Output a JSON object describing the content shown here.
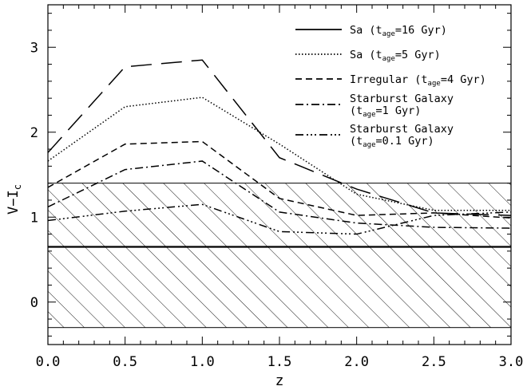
{
  "chart_data": {
    "type": "line",
    "xlabel": "z",
    "ylabel": {
      "main": "V−I",
      "sub": "c"
    },
    "xlim": [
      0.0,
      3.0
    ],
    "ylim": [
      -0.5,
      3.5
    ],
    "xticks": [
      "0.0",
      "0.5",
      "1.0",
      "1.5",
      "2.0",
      "2.5",
      "3.0"
    ],
    "yticks": [
      "0",
      "1",
      "2",
      "3"
    ],
    "grid": false,
    "legend_position": "top-right",
    "series": [
      {
        "name": "Sa (t_age=16 Gyr)",
        "label_pre": "Sa (t",
        "label_sub": "age",
        "label_post": "=16 Gyr)",
        "dash": "solid-legend-longdash-plot",
        "x": [
          0.0,
          0.5,
          1.0,
          1.5,
          2.0,
          2.5,
          3.0
        ],
        "y": [
          1.76,
          2.77,
          2.85,
          1.7,
          1.33,
          1.05,
          1.02
        ]
      },
      {
        "name": "Sa (t_age=5 Gyr)",
        "label_pre": "Sa (t",
        "label_sub": "age",
        "label_post": "=5 Gyr)",
        "dash": "dotted",
        "x": [
          0.0,
          0.5,
          1.0,
          1.5,
          2.0,
          2.5,
          3.0
        ],
        "y": [
          1.66,
          2.3,
          2.41,
          1.86,
          1.27,
          1.08,
          1.08
        ]
      },
      {
        "name": "Irregular (t_age=4 Gyr)",
        "label_pre": "Irregular (t",
        "label_sub": "age",
        "label_post": "=4 Gyr)",
        "dash": "dashed",
        "x": [
          0.0,
          0.5,
          1.0,
          1.5,
          2.0,
          2.5,
          3.0
        ],
        "y": [
          1.35,
          1.86,
          1.89,
          1.22,
          1.02,
          1.05,
          0.99
        ]
      },
      {
        "name": "Starburst Galaxy (t_age=1 Gyr)",
        "label_line1": "Starburst Galaxy",
        "label_pre": "(t",
        "label_sub": "age",
        "label_post": "=1 Gyr)",
        "dash": "dashdot",
        "x": [
          0.0,
          0.5,
          1.0,
          1.5,
          2.0,
          2.5,
          3.0
        ],
        "y": [
          1.12,
          1.56,
          1.66,
          1.06,
          0.93,
          0.88,
          0.87
        ]
      },
      {
        "name": "Starburst Galaxy (t_age=0.1 Gyr)",
        "label_line1": "Starburst Galaxy",
        "label_pre": "(t",
        "label_sub": "age",
        "label_post": "=0.1 Gyr)",
        "dash": "dashdotdotdot",
        "x": [
          0.0,
          0.5,
          1.0,
          1.5,
          2.0,
          2.5,
          3.0
        ],
        "y": [
          0.96,
          1.07,
          1.15,
          0.83,
          0.8,
          1.02,
          1.06
        ]
      }
    ],
    "bands": {
      "hatched_range": [
        -0.3,
        1.4
      ],
      "horizontal_line": 0.65
    }
  }
}
